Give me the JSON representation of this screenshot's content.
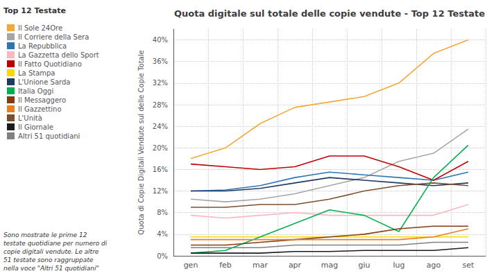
{
  "chart_data": {
    "type": "line",
    "title": "Quota digitale sul totale delle copie vendute - Top 12 Testate",
    "legend_title": "Top 12 Testate",
    "ylabel": "Quota di Copie Digitali Vendute sul delle Copie Totale",
    "annotation": "Sono mostrate le prime 12\ntestate quotidiane per numero di\ncopie digitali vendute. Le altre\n51 testate sono raggruppate\nnella voce \"Altri 51 quotidiani\"",
    "categories": [
      "gen",
      "feb",
      "mar",
      "apr",
      "mag",
      "giu",
      "lug",
      "ago",
      "set"
    ],
    "series": [
      {
        "name": "Il Sole 24Ore",
        "color": "#F4A83A",
        "values": [
          18.0,
          20.0,
          24.5,
          27.5,
          28.5,
          29.5,
          32.0,
          37.5,
          40.0
        ]
      },
      {
        "name": "Il Corriere della Sera",
        "color": "#A6A6A6",
        "values": [
          10.5,
          10.0,
          10.5,
          11.5,
          13.0,
          14.5,
          17.5,
          19.0,
          23.5
        ]
      },
      {
        "name": "La Repubblica",
        "color": "#2E75B6",
        "values": [
          12.0,
          12.2,
          13.0,
          14.5,
          15.5,
          15.0,
          14.5,
          14.0,
          15.5
        ]
      },
      {
        "name": "La Gazzetta dello Sport",
        "color": "#FFB6C1",
        "values": [
          7.5,
          7.0,
          7.5,
          8.0,
          7.5,
          7.5,
          7.5,
          7.5,
          9.5
        ]
      },
      {
        "name": "Il Fatto Quotidiano",
        "color": "#C00000",
        "values": [
          17.0,
          16.5,
          16.0,
          16.5,
          18.5,
          18.5,
          16.5,
          14.0,
          17.5
        ]
      },
      {
        "name": "La Stampa",
        "color": "#FFD700",
        "values": [
          3.5,
          3.5,
          3.5,
          3.5,
          3.5,
          3.5,
          3.5,
          3.5,
          3.5
        ]
      },
      {
        "name": "L'Unione Sarda",
        "color": "#1F3864",
        "values": [
          12.0,
          12.0,
          12.5,
          13.5,
          14.5,
          14.0,
          13.5,
          13.0,
          13.5
        ]
      },
      {
        "name": "Italia Oggi",
        "color": "#00B050",
        "values": [
          0.5,
          1.0,
          3.5,
          6.0,
          8.5,
          7.5,
          4.5,
          14.5,
          20.5
        ]
      },
      {
        "name": "Il Messaggero",
        "color": "#843C0C",
        "values": [
          2.0,
          2.0,
          2.5,
          3.0,
          3.5,
          4.0,
          5.0,
          5.5,
          5.5
        ]
      },
      {
        "name": "Il Gazzettino",
        "color": "#E67E22",
        "values": [
          3.0,
          3.0,
          3.0,
          3.0,
          3.0,
          3.0,
          3.0,
          3.5,
          5.0
        ]
      },
      {
        "name": "L'Unità",
        "color": "#7B4F2E",
        "values": [
          9.0,
          9.0,
          9.5,
          9.5,
          10.5,
          12.0,
          13.0,
          13.5,
          13.0
        ]
      },
      {
        "name": "Il Giornale",
        "color": "#1C1C1C",
        "values": [
          0.5,
          0.5,
          0.5,
          0.8,
          0.8,
          1.0,
          1.0,
          1.0,
          1.5
        ]
      },
      {
        "name": "Altri 51 quotidiani",
        "color": "#808080",
        "values": [
          1.5,
          1.5,
          1.5,
          2.0,
          2.0,
          2.0,
          2.0,
          2.5,
          2.5
        ]
      }
    ],
    "ylim": [
      0,
      42
    ],
    "yticks": [
      {
        "value": 0,
        "label": "0%"
      },
      {
        "value": 4,
        "label": "4%"
      },
      {
        "value": 8,
        "label": "8%"
      },
      {
        "value": 12,
        "label": "12%"
      },
      {
        "value": 16,
        "label": "16%"
      },
      {
        "value": 20,
        "label": "20%"
      },
      {
        "value": 24,
        "label": "24%"
      },
      {
        "value": 28,
        "label": "28%"
      },
      {
        "value": 32,
        "label": "32%"
      },
      {
        "value": 36,
        "label": "36%"
      },
      {
        "value": 40,
        "label": "40%"
      }
    ],
    "grid": true,
    "legend": "upper left"
  }
}
